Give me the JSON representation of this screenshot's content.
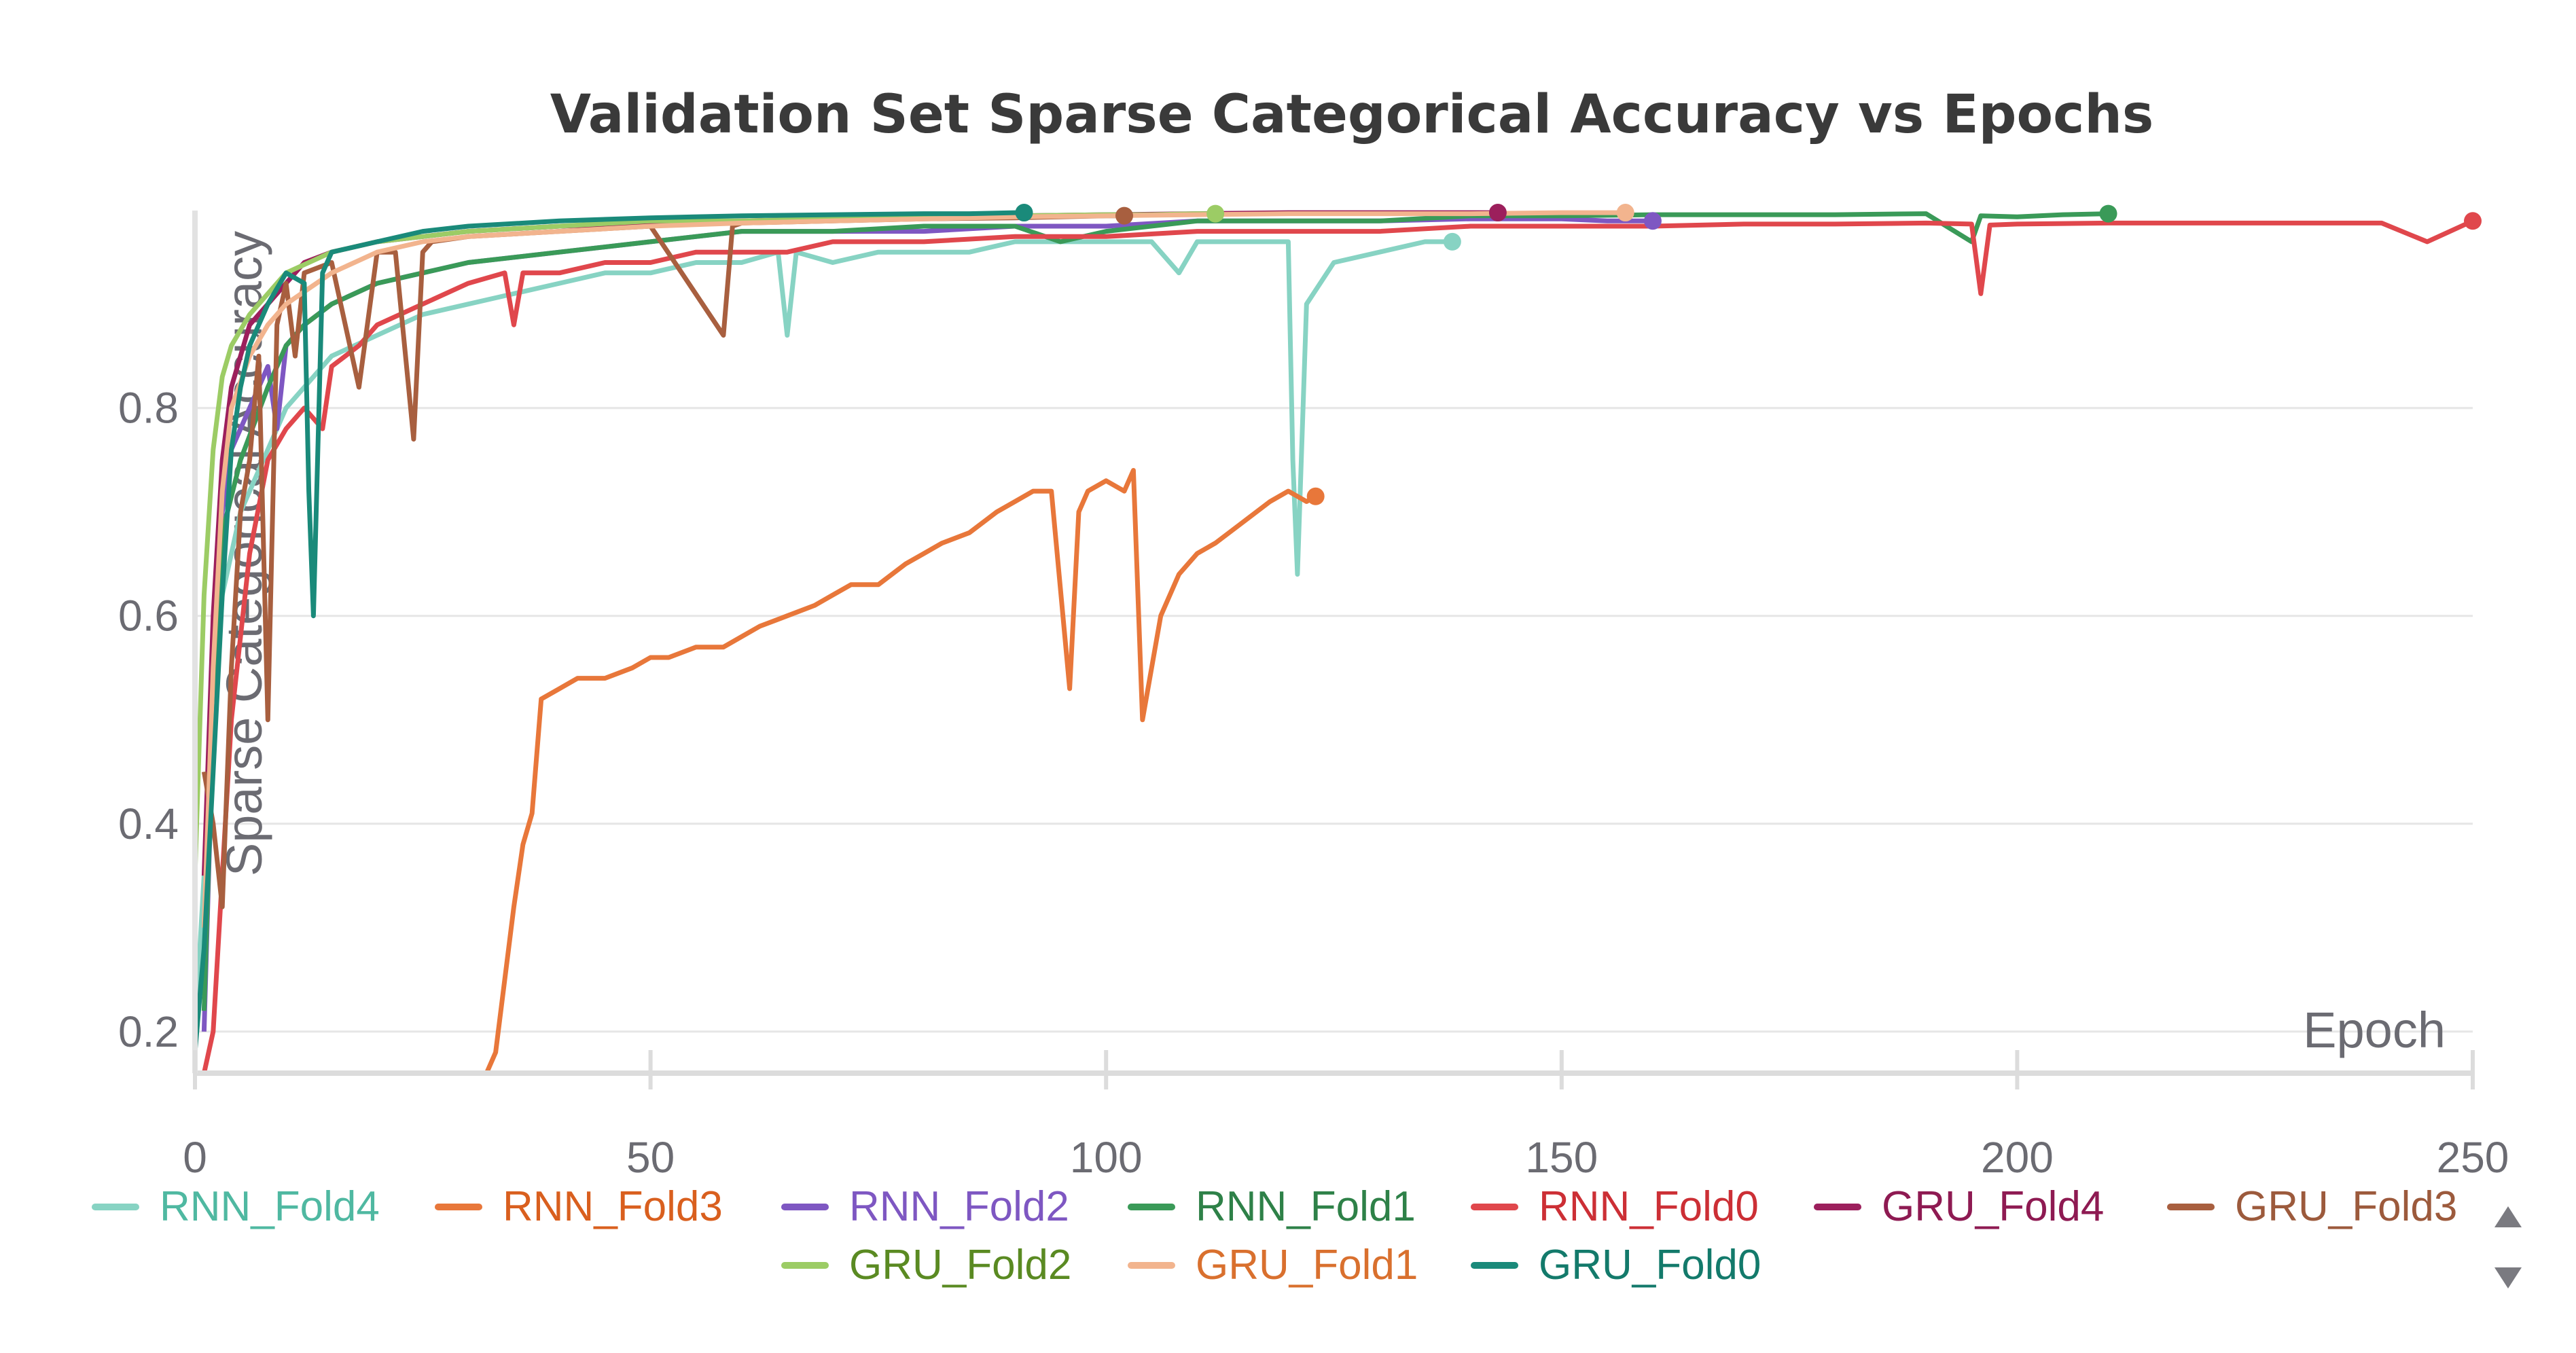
{
  "chart_data": {
    "type": "line",
    "title": "Validation Set Sparse Categorical Accuracy vs Epochs",
    "xlabel": "Epoch",
    "ylabel": "Sparse Categorical Accuracy",
    "xlim": [
      0,
      250
    ],
    "ylim": [
      0.16,
      0.99
    ],
    "x_ticks": [
      "0",
      "50",
      "100",
      "150",
      "200",
      "250"
    ],
    "x_tick_values": [
      0,
      50,
      100,
      150,
      200,
      250
    ],
    "y_ticks": [
      "0.2",
      "0.4",
      "0.6",
      "0.8"
    ],
    "y_tick_values": [
      0.2,
      0.4,
      0.6,
      0.8
    ],
    "grid": true,
    "legend_position": "bottom",
    "series": [
      {
        "name": "RNN_Fold4",
        "color": "#87d3c3",
        "text_color": "#4fb8a1",
        "x": [
          0,
          1,
          2,
          3,
          5,
          8,
          10,
          15,
          20,
          25,
          30,
          35,
          40,
          45,
          50,
          55,
          60,
          64,
          65,
          66,
          70,
          75,
          80,
          85,
          90,
          95,
          100,
          105,
          108,
          110,
          115,
          118,
          120,
          120.5,
          121,
          122,
          125,
          130,
          135,
          138
        ],
        "y": [
          0.2,
          0.35,
          0.5,
          0.62,
          0.7,
          0.76,
          0.8,
          0.85,
          0.87,
          0.89,
          0.9,
          0.91,
          0.92,
          0.93,
          0.93,
          0.94,
          0.94,
          0.95,
          0.87,
          0.95,
          0.94,
          0.95,
          0.95,
          0.95,
          0.96,
          0.96,
          0.96,
          0.96,
          0.93,
          0.96,
          0.96,
          0.96,
          0.96,
          0.75,
          0.64,
          0.9,
          0.94,
          0.95,
          0.96,
          0.96
        ]
      },
      {
        "name": "RNN_Fold3",
        "color": "#e8773a",
        "text_color": "#d95f1e",
        "x": [
          32,
          33,
          34,
          35,
          36,
          37,
          38,
          40,
          42,
          45,
          48,
          50,
          52,
          55,
          58,
          60,
          62,
          65,
          68,
          70,
          72,
          75,
          78,
          80,
          82,
          85,
          88,
          90,
          92,
          94,
          96,
          97,
          98,
          100,
          102,
          103,
          104,
          106,
          108,
          110,
          112,
          115,
          118,
          120,
          122,
          123
        ],
        "y": [
          0.16,
          0.18,
          0.25,
          0.32,
          0.38,
          0.41,
          0.52,
          0.53,
          0.54,
          0.54,
          0.55,
          0.56,
          0.56,
          0.57,
          0.57,
          0.58,
          0.59,
          0.6,
          0.61,
          0.62,
          0.63,
          0.63,
          0.65,
          0.66,
          0.67,
          0.68,
          0.7,
          0.71,
          0.72,
          0.72,
          0.53,
          0.7,
          0.72,
          0.73,
          0.72,
          0.74,
          0.5,
          0.6,
          0.64,
          0.66,
          0.67,
          0.69,
          0.71,
          0.72,
          0.71,
          0.715
        ]
      },
      {
        "name": "RNN_Fold2",
        "color": "#7e57c2",
        "text_color": "#7e57c2",
        "x": [
          1,
          2,
          3,
          4,
          6,
          8,
          9,
          10,
          12,
          15,
          20,
          25,
          30,
          40,
          50,
          60,
          70,
          80,
          90,
          100,
          110,
          120,
          130,
          140,
          150,
          155,
          160
        ],
        "y": [
          0.2,
          0.5,
          0.7,
          0.76,
          0.8,
          0.84,
          0.78,
          0.86,
          0.88,
          0.9,
          0.92,
          0.93,
          0.94,
          0.95,
          0.96,
          0.97,
          0.97,
          0.97,
          0.975,
          0.975,
          0.98,
          0.98,
          0.98,
          0.982,
          0.982,
          0.98,
          0.98
        ]
      },
      {
        "name": "RNN_Fold1",
        "color": "#3a9a58",
        "text_color": "#2e8148",
        "x": [
          1,
          2,
          3,
          5,
          8,
          10,
          12,
          15,
          20,
          25,
          30,
          40,
          50,
          60,
          70,
          80,
          90,
          95,
          100,
          110,
          120,
          130,
          140,
          150,
          160,
          170,
          180,
          190,
          195,
          196,
          200,
          205,
          210
        ],
        "y": [
          0.22,
          0.5,
          0.68,
          0.75,
          0.82,
          0.86,
          0.88,
          0.9,
          0.92,
          0.93,
          0.94,
          0.95,
          0.96,
          0.97,
          0.97,
          0.975,
          0.975,
          0.96,
          0.97,
          0.98,
          0.98,
          0.98,
          0.985,
          0.985,
          0.986,
          0.986,
          0.986,
          0.987,
          0.96,
          0.985,
          0.984,
          0.986,
          0.987
        ]
      },
      {
        "name": "RNN_Fold0",
        "color": "#e0474c",
        "text_color": "#cc2f35",
        "x": [
          1,
          2,
          4,
          6,
          8,
          10,
          12,
          14,
          15,
          18,
          20,
          25,
          30,
          34,
          35,
          36,
          40,
          45,
          50,
          55,
          60,
          65,
          70,
          80,
          90,
          100,
          110,
          120,
          130,
          140,
          150,
          160,
          170,
          180,
          190,
          195,
          196,
          197,
          200,
          210,
          220,
          230,
          240,
          245,
          250
        ],
        "y": [
          0.16,
          0.2,
          0.5,
          0.66,
          0.75,
          0.78,
          0.8,
          0.78,
          0.84,
          0.86,
          0.88,
          0.9,
          0.92,
          0.93,
          0.88,
          0.93,
          0.93,
          0.94,
          0.94,
          0.95,
          0.95,
          0.95,
          0.96,
          0.96,
          0.965,
          0.965,
          0.97,
          0.97,
          0.97,
          0.975,
          0.975,
          0.975,
          0.977,
          0.977,
          0.978,
          0.977,
          0.91,
          0.976,
          0.977,
          0.978,
          0.978,
          0.978,
          0.978,
          0.96,
          0.98
        ]
      },
      {
        "name": "GRU_Fold4",
        "color": "#9c1f5c",
        "text_color": "#8e1a52",
        "x": [
          1,
          2,
          3,
          4,
          6,
          8,
          10,
          12,
          15,
          20,
          25,
          30,
          40,
          50,
          60,
          70,
          80,
          90,
          100,
          110,
          120,
          130,
          140,
          143
        ],
        "y": [
          0.35,
          0.6,
          0.75,
          0.82,
          0.88,
          0.9,
          0.92,
          0.94,
          0.95,
          0.96,
          0.965,
          0.97,
          0.975,
          0.978,
          0.98,
          0.982,
          0.985,
          0.985,
          0.986,
          0.987,
          0.988,
          0.988,
          0.988,
          0.988
        ]
      },
      {
        "name": "GRU_Fold3",
        "color": "#a85f3f",
        "text_color": "#9c5a3c",
        "x": [
          1,
          2,
          3,
          4,
          5,
          6,
          7,
          8,
          9,
          10,
          11,
          12,
          15,
          18,
          20,
          22,
          24,
          25,
          26,
          30,
          40,
          50,
          58,
          59,
          60,
          70,
          80,
          90,
          100,
          102
        ],
        "y": [
          0.45,
          0.4,
          0.32,
          0.55,
          0.7,
          0.75,
          0.85,
          0.5,
          0.88,
          0.92,
          0.85,
          0.93,
          0.94,
          0.82,
          0.95,
          0.95,
          0.77,
          0.95,
          0.96,
          0.965,
          0.97,
          0.975,
          0.87,
          0.975,
          0.978,
          0.98,
          0.982,
          0.983,
          0.985,
          0.985
        ]
      },
      {
        "name": "GRU_Fold2",
        "color": "#9ccc65",
        "text_color": "#5a8a22",
        "x": [
          0,
          1,
          2,
          3,
          4,
          6,
          8,
          10,
          15,
          20,
          25,
          30,
          40,
          50,
          60,
          70,
          80,
          90,
          100,
          105,
          110,
          112
        ],
        "y": [
          0.35,
          0.62,
          0.76,
          0.83,
          0.86,
          0.89,
          0.91,
          0.93,
          0.95,
          0.96,
          0.965,
          0.97,
          0.975,
          0.98,
          0.98,
          0.982,
          0.984,
          0.985,
          0.986,
          0.986,
          0.987,
          0.987
        ]
      },
      {
        "name": "GRU_Fold1",
        "color": "#f2b48e",
        "text_color": "#d9702e",
        "x": [
          1,
          2,
          3,
          4,
          6,
          8,
          10,
          15,
          20,
          25,
          30,
          40,
          50,
          60,
          70,
          80,
          90,
          100,
          110,
          120,
          130,
          140,
          150,
          157
        ],
        "y": [
          0.3,
          0.55,
          0.72,
          0.8,
          0.85,
          0.88,
          0.9,
          0.93,
          0.95,
          0.96,
          0.965,
          0.97,
          0.975,
          0.978,
          0.98,
          0.982,
          0.984,
          0.985,
          0.986,
          0.987,
          0.987,
          0.987,
          0.988,
          0.988
        ]
      },
      {
        "name": "GRU_Fold0",
        "color": "#1a8a7a",
        "text_color": "#137a6b",
        "x": [
          0,
          1,
          2,
          3,
          4,
          5,
          6,
          8,
          10,
          12,
          12.5,
          13,
          14,
          15,
          20,
          25,
          30,
          40,
          50,
          60,
          70,
          80,
          85,
          90,
          91
        ],
        "y": [
          0.18,
          0.28,
          0.45,
          0.62,
          0.76,
          0.82,
          0.86,
          0.9,
          0.93,
          0.92,
          0.72,
          0.6,
          0.93,
          0.95,
          0.96,
          0.97,
          0.975,
          0.98,
          0.983,
          0.985,
          0.986,
          0.987,
          0.987,
          0.988,
          0.988
        ]
      }
    ]
  },
  "legend": {
    "scroll_up_icon": "triangle-up-icon",
    "scroll_down_icon": "triangle-down-icon"
  }
}
